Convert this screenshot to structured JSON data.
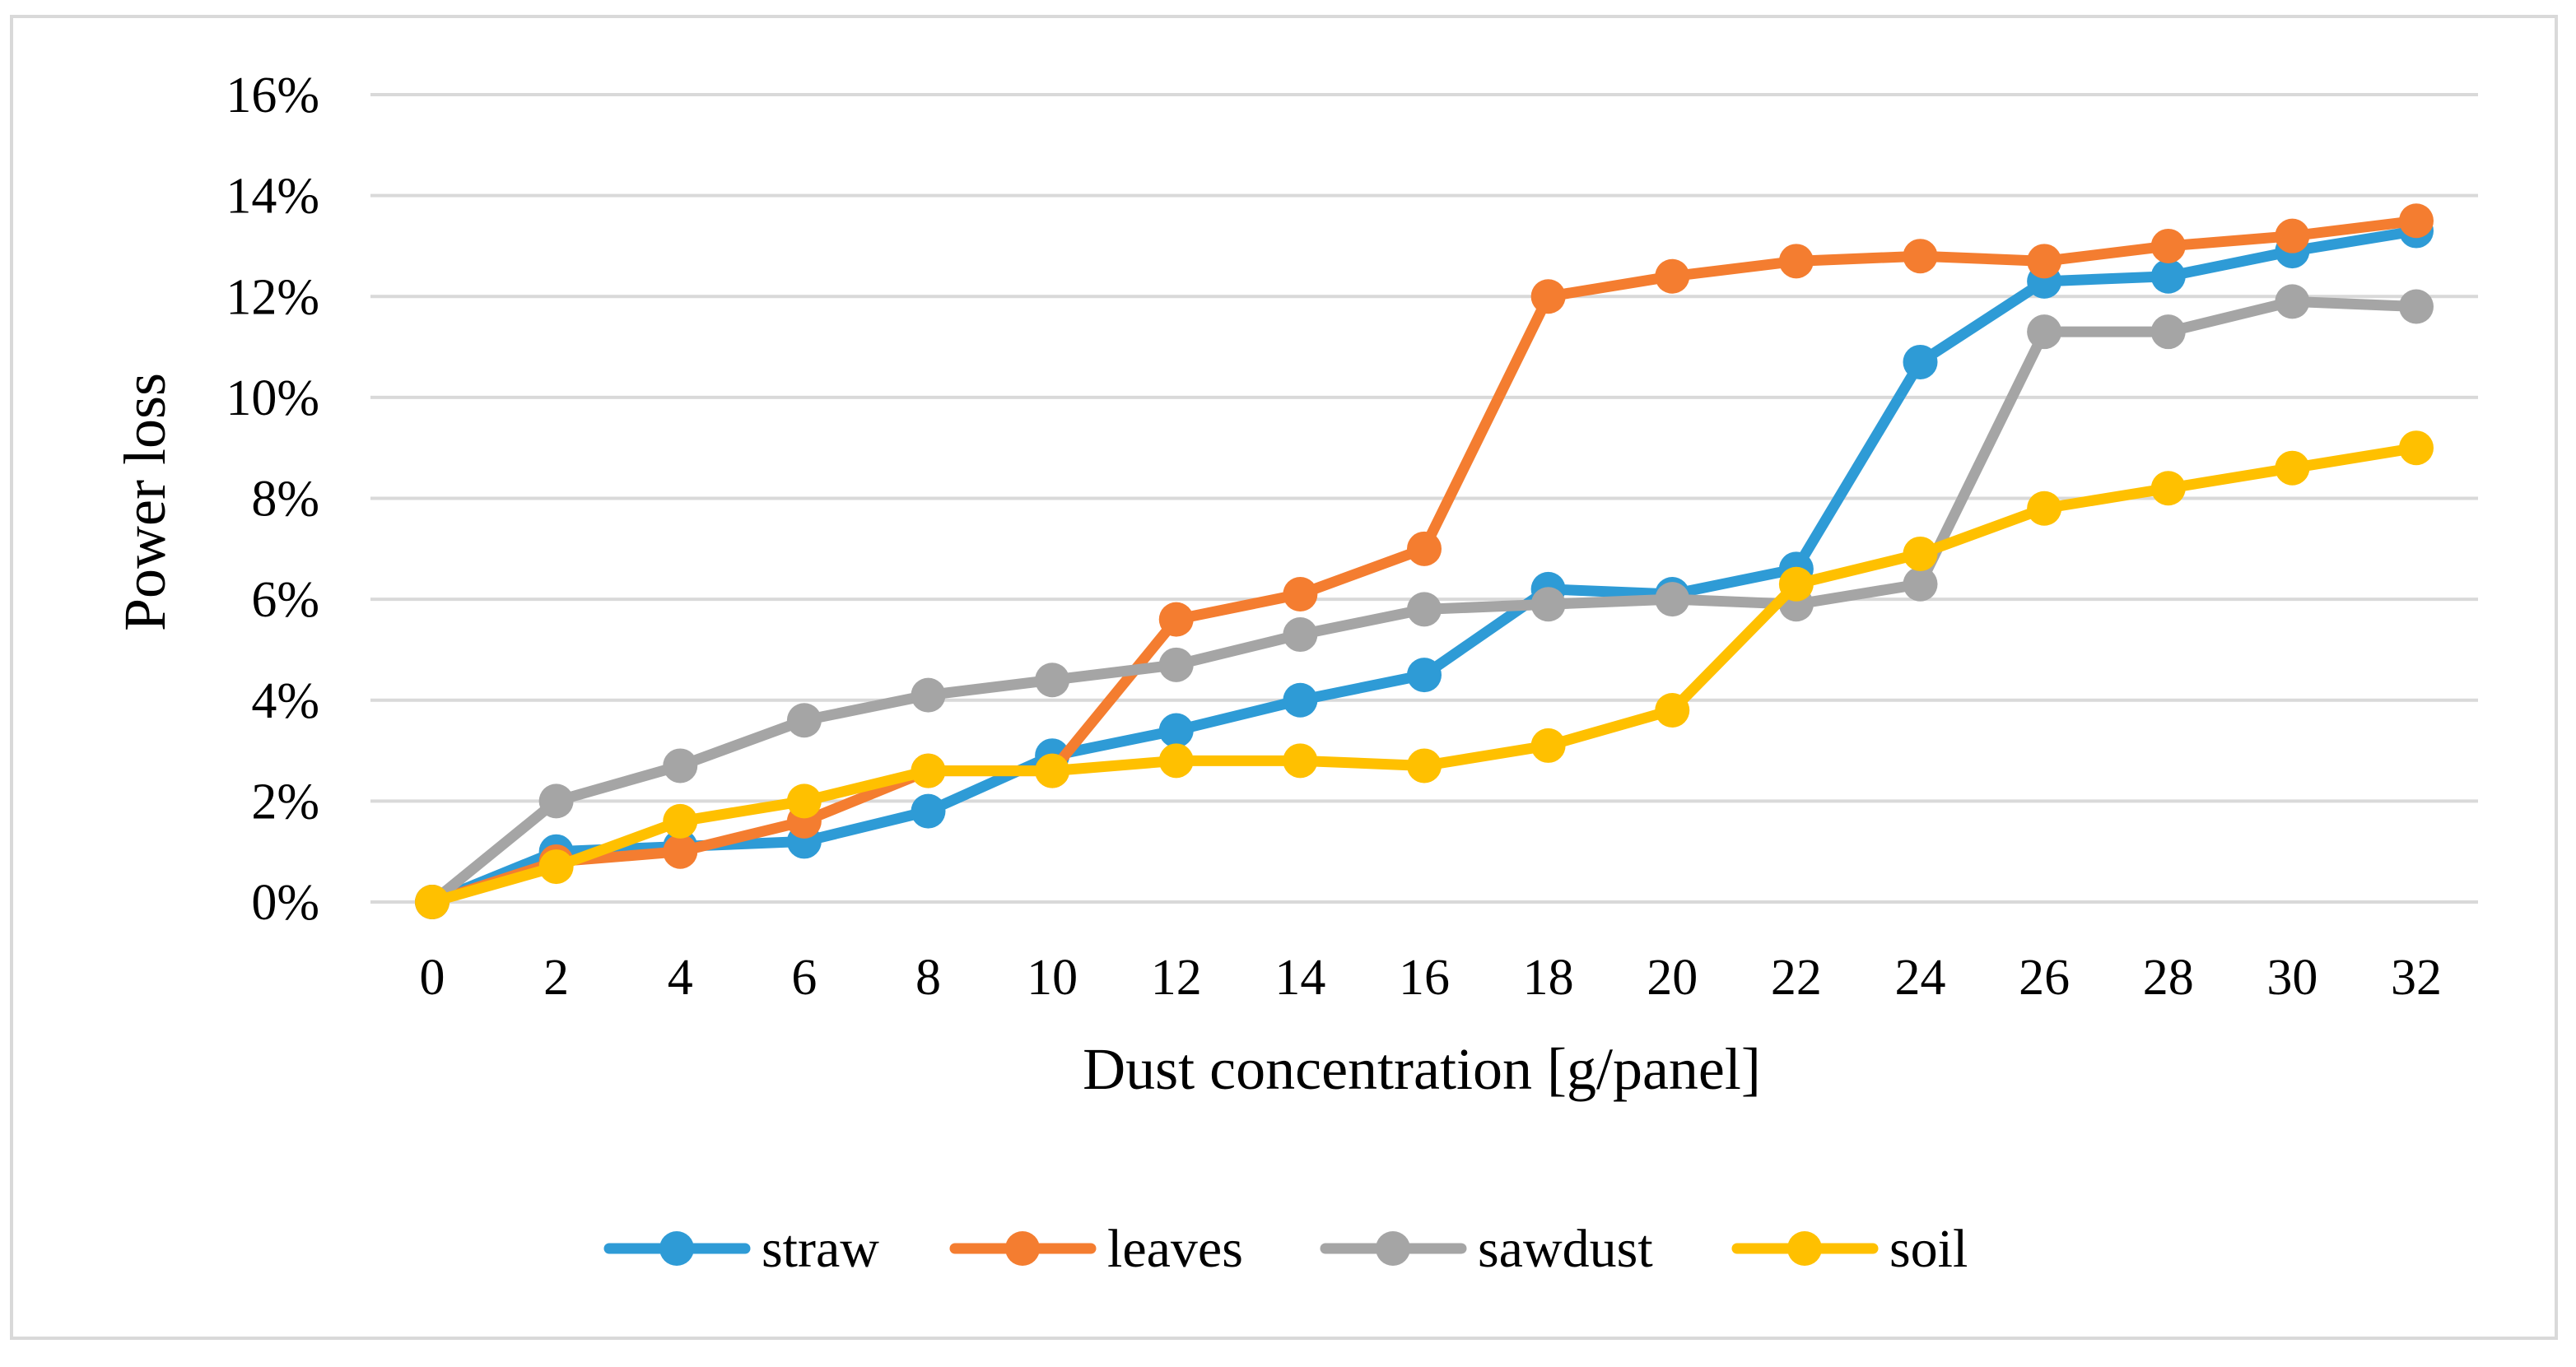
{
  "chart_data": {
    "type": "line",
    "title": "",
    "xlabel": "Dust concentration [g/panel]",
    "ylabel": "Power loss",
    "x": [
      0,
      2,
      4,
      6,
      8,
      10,
      12,
      14,
      16,
      18,
      20,
      22,
      24,
      26,
      28,
      30,
      32
    ],
    "xticks": [
      "0",
      "2",
      "4",
      "6",
      "8",
      "10",
      "12",
      "14",
      "16",
      "18",
      "20",
      "22",
      "24",
      "26",
      "28",
      "30",
      "32"
    ],
    "yticks": [
      "0%",
      "2%",
      "4%",
      "6%",
      "8%",
      "10%",
      "12%",
      "14%",
      "16%"
    ],
    "ylim": [
      0,
      16
    ],
    "grid": true,
    "legend_position": "bottom",
    "series": [
      {
        "name": "straw",
        "color": "#2E9BD6",
        "values": [
          0,
          1.0,
          1.1,
          1.2,
          1.8,
          2.9,
          3.4,
          4.0,
          4.5,
          6.2,
          6.1,
          6.6,
          10.7,
          12.3,
          12.4,
          12.9,
          13.3
        ]
      },
      {
        "name": "leaves",
        "color": "#F47D30",
        "values": [
          0,
          0.8,
          1.0,
          1.6,
          2.6,
          2.6,
          5.6,
          6.1,
          7.0,
          12.0,
          12.4,
          12.7,
          12.8,
          12.7,
          13.0,
          13.2,
          13.5
        ]
      },
      {
        "name": "sawdust",
        "color": "#A5A5A5",
        "values": [
          0,
          2.0,
          2.7,
          3.6,
          4.1,
          4.4,
          4.7,
          5.3,
          5.8,
          5.9,
          6.0,
          5.9,
          6.3,
          11.3,
          11.3,
          11.9,
          11.8
        ]
      },
      {
        "name": "soil",
        "color": "#FFC000",
        "values": [
          0,
          0.7,
          1.6,
          2.0,
          2.6,
          2.6,
          2.8,
          2.8,
          2.7,
          3.1,
          3.8,
          6.3,
          6.9,
          7.8,
          8.2,
          8.6,
          9.0
        ]
      }
    ]
  }
}
